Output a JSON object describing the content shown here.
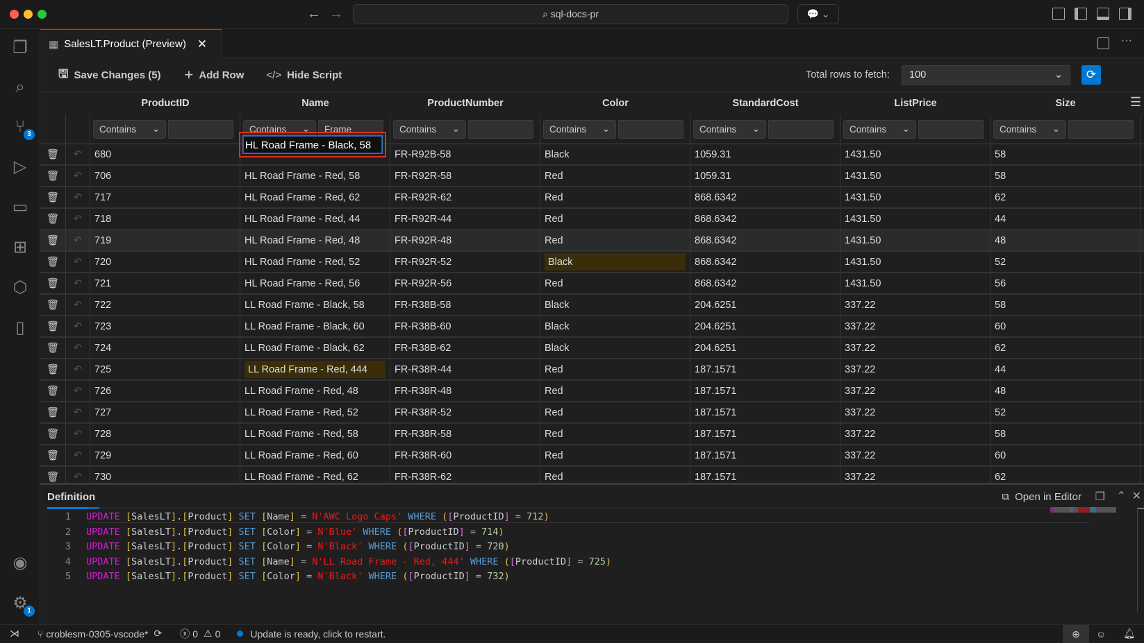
{
  "window": {
    "search": "sql-docs-pr"
  },
  "activity_bar": {
    "source_control_badge": "3",
    "settings_badge": "1"
  },
  "tab": {
    "title": "SalesLT.Product (Preview)"
  },
  "toolbar": {
    "save_label": "Save Changes (5)",
    "add_row_label": "Add Row",
    "hide_script_label": "Hide Script",
    "fetch_label": "Total rows to fetch:",
    "fetch_value": "100"
  },
  "grid": {
    "columns": [
      "ProductID",
      "Name",
      "ProductNumber",
      "Color",
      "StandardCost",
      "ListPrice",
      "Size"
    ],
    "filters": [
      {
        "op": "Contains",
        "value": ""
      },
      {
        "op": "Contains",
        "value": "Frame"
      },
      {
        "op": "Contains",
        "value": ""
      },
      {
        "op": "Contains",
        "value": ""
      },
      {
        "op": "Contains",
        "value": ""
      },
      {
        "op": "Contains",
        "value": ""
      },
      {
        "op": "Contains",
        "value": ""
      }
    ],
    "editing_value": "HL Road Frame - Black, 58",
    "rows": [
      [
        "680",
        "HL Road Frame - Black, 58",
        "FR-R92B-58",
        "Black",
        "1059.31",
        "1431.50",
        "58"
      ],
      [
        "706",
        "HL Road Frame - Red, 58",
        "FR-R92R-58",
        "Red",
        "1059.31",
        "1431.50",
        "58"
      ],
      [
        "717",
        "HL Road Frame - Red, 62",
        "FR-R92R-62",
        "Red",
        "868.6342",
        "1431.50",
        "62"
      ],
      [
        "718",
        "HL Road Frame - Red, 44",
        "FR-R92R-44",
        "Red",
        "868.6342",
        "1431.50",
        "44"
      ],
      [
        "719",
        "HL Road Frame - Red, 48",
        "FR-R92R-48",
        "Red",
        "868.6342",
        "1431.50",
        "48"
      ],
      [
        "720",
        "HL Road Frame - Red, 52",
        "FR-R92R-52",
        "Black",
        "868.6342",
        "1431.50",
        "52"
      ],
      [
        "721",
        "HL Road Frame - Red, 56",
        "FR-R92R-56",
        "Red",
        "868.6342",
        "1431.50",
        "56"
      ],
      [
        "722",
        "LL Road Frame - Black, 58",
        "FR-R38B-58",
        "Black",
        "204.6251",
        "337.22",
        "58"
      ],
      [
        "723",
        "LL Road Frame - Black, 60",
        "FR-R38B-60",
        "Black",
        "204.6251",
        "337.22",
        "60"
      ],
      [
        "724",
        "LL Road Frame - Black, 62",
        "FR-R38B-62",
        "Black",
        "204.6251",
        "337.22",
        "62"
      ],
      [
        "725",
        "LL Road Frame - Red, 444",
        "FR-R38R-44",
        "Red",
        "187.1571",
        "337.22",
        "44"
      ],
      [
        "726",
        "LL Road Frame - Red, 48",
        "FR-R38R-48",
        "Red",
        "187.1571",
        "337.22",
        "48"
      ],
      [
        "727",
        "LL Road Frame - Red, 52",
        "FR-R38R-52",
        "Red",
        "187.1571",
        "337.22",
        "52"
      ],
      [
        "728",
        "LL Road Frame - Red, 58",
        "FR-R38R-58",
        "Red",
        "187.1571",
        "337.22",
        "58"
      ],
      [
        "729",
        "LL Road Frame - Red, 60",
        "FR-R38R-60",
        "Red",
        "187.1571",
        "337.22",
        "60"
      ],
      [
        "730",
        "LL Road Frame - Red, 62",
        "FR-R38R-62",
        "Red",
        "187.1571",
        "337.22",
        "62"
      ]
    ],
    "modified_cells": [
      [
        5,
        3
      ],
      [
        10,
        1
      ]
    ],
    "selected_row": 4
  },
  "definition": {
    "tab": "Definition",
    "open_in_editor": "Open in Editor",
    "lines": [
      {
        "n": "1",
        "field": "Name",
        "value": "N'AWC Logo Caps'",
        "id": "712"
      },
      {
        "n": "2",
        "field": "Color",
        "value": "N'Blue'",
        "id": "714"
      },
      {
        "n": "3",
        "field": "Color",
        "value": "N'Black'",
        "id": "720"
      },
      {
        "n": "4",
        "field": "Name",
        "value": "N'LL Road Frame - Red, 444'",
        "id": "725"
      },
      {
        "n": "5",
        "field": "Color",
        "value": "N'Black'",
        "id": "732"
      }
    ]
  },
  "status": {
    "branch": "croblesm-0305-vscode*",
    "errors": "0",
    "warnings": "0",
    "message": "Update is ready, click to restart."
  },
  "colors": {
    "accent": "#0078d4",
    "modified": "#3a2d0a",
    "edit_outline": "#e52d1f"
  }
}
